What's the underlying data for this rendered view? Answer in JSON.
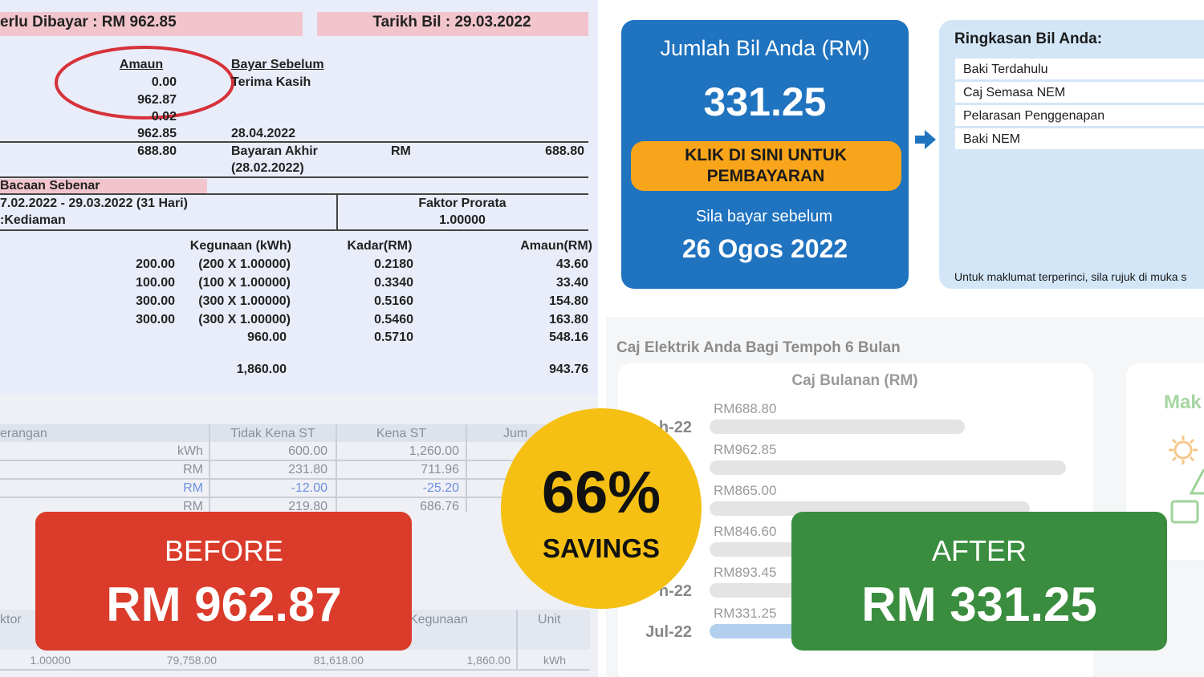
{
  "bill": {
    "header": [
      "erlu Dibayar : RM 962.85",
      "Tarikh Bil : 29.03.2022"
    ],
    "summary": {
      "amount_heading": "Amaun",
      "pay_before_heading": "Bayar Sebelum",
      "thanks": "Terima Kasih",
      "amounts": [
        "0.00",
        "962.87",
        "0.02",
        "962.85",
        "688.80"
      ],
      "due_date": "28.04.2022",
      "last_payment_label": "Bayaran Akhir",
      "last_payment_date": "(28.02.2022)",
      "currency": "RM",
      "last_payment_amount": "688.80"
    },
    "reading": {
      "type": "Bacaan Sebenar",
      "period": "7.02.2022 - 29.03.2022 (31 Hari)",
      "tariff": ":Kediaman",
      "prorata_label": "Faktor Prorata",
      "prorata_value": "1.00000"
    },
    "usage": {
      "headers": [
        "Kegunaan (kWh)",
        "Kadar(RM)",
        "Amaun(RM)"
      ],
      "rows": [
        [
          "200.00",
          "(200 X 1.00000)",
          "0.2180",
          "43.60"
        ],
        [
          "100.00",
          "(100 X 1.00000)",
          "0.3340",
          "33.40"
        ],
        [
          "300.00",
          "(300 X 1.00000)",
          "0.5160",
          "154.80"
        ],
        [
          "300.00",
          "(300 X 1.00000)",
          "0.5460",
          "163.80"
        ],
        [
          null,
          "960.00",
          "0.5710",
          "548.16"
        ],
        [
          null,
          "1,860.00",
          null,
          "943.76"
        ]
      ]
    },
    "tax_table": {
      "headers": [
        "erangan",
        "Tidak Kena ST",
        "Kena ST",
        "Jum"
      ],
      "rows": [
        [
          "kWh",
          "600.00",
          "1,260.00"
        ],
        [
          "RM",
          "231.80",
          "711.96"
        ],
        [
          "RM",
          "-12.00",
          "-25.20"
        ],
        [
          "RM",
          "219.80",
          "686.76"
        ]
      ]
    },
    "meter_table": {
      "headers": [
        "ktor",
        "Kegunaan",
        "Unit"
      ],
      "row": [
        "1.00000",
        "79,758.00",
        "81,618.00",
        "1,860.00",
        "kWh"
      ]
    }
  },
  "app": {
    "bill_card": {
      "title": "Jumlah Bil Anda (RM)",
      "amount": "331.25",
      "button": "KLIK DI SINI UNTUK PEMBAYARAN",
      "pay_before": "Sila bayar sebelum",
      "due_date": "26 Ogos 2022"
    },
    "summary": {
      "title": "Ringkasan Bil Anda:",
      "items": [
        "Baki Terdahulu",
        "Caj Semasa NEM",
        "Pelarasan Penggenapan",
        "Baki NEM"
      ],
      "note": "Untuk maklumat terperinci, sila rujuk di muka s"
    },
    "side_card_title": "Mak"
  },
  "chart_data": {
    "type": "bar",
    "orientation": "horizontal",
    "title": "Caj Elektrik Anda Bagi Tempoh 6 Bulan",
    "subtitle": "Caj Bulanan (RM)",
    "categories": [
      "h-22",
      null,
      null,
      null,
      "n-22",
      "Jul-22"
    ],
    "values": [
      688.8,
      962.85,
      865.0,
      846.6,
      893.45,
      331.25
    ],
    "value_labels": [
      "RM688.80",
      "RM962.85",
      "RM865.00",
      "RM846.60",
      "RM893.45",
      "RM331.25"
    ],
    "colors": [
      "#e4e4e4",
      "#e4e4e4",
      "#e4e4e4",
      "#e4e4e4",
      "#e4e4e4",
      "#b3cfee"
    ]
  },
  "overlay": {
    "before_label": "BEFORE",
    "before_amount": "RM 962.87",
    "savings_percent": "66%",
    "savings_label": "SAVINGS",
    "after_label": "AFTER",
    "after_amount": "RM 331.25"
  }
}
